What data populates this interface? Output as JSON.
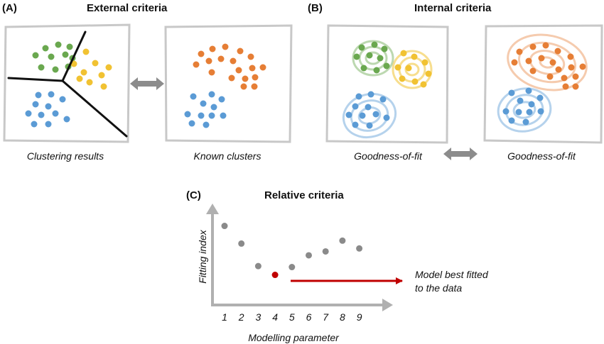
{
  "panels": {
    "a": {
      "letter": "(A)",
      "title": "External criteria",
      "left_caption": "Clustering results",
      "right_caption": "Known clusters"
    },
    "b": {
      "letter": "(B)",
      "title": "Internal criteria",
      "left_caption": "Goodness-of-fit",
      "right_caption": "Goodness-of-fit"
    },
    "c": {
      "letter": "(C)",
      "title": "Relative criteria",
      "note_line1": "Model best fitted",
      "note_line2": "to the data"
    }
  },
  "colors": {
    "green": "#6aa84f",
    "yellow": "#f1c232",
    "blue": "#5b9bd5",
    "orange": "#e67e35",
    "gray_point": "#8a8a8a",
    "best_point": "#c00000",
    "arrow_gray": "#8c8c8c",
    "axis_gray": "#b0b0b0"
  },
  "chart_data": {
    "type": "scatter",
    "title": "Relative criteria",
    "xlabel": "Modelling parameter",
    "ylabel": "Fitting index",
    "x": [
      1,
      2,
      3,
      4,
      5,
      6,
      7,
      8,
      9
    ],
    "y": [
      8.8,
      7.0,
      4.7,
      3.8,
      4.6,
      5.8,
      6.2,
      7.3,
      6.5
    ],
    "best_x": 4,
    "xlim": [
      0,
      10
    ],
    "ylim": [
      0,
      10
    ],
    "annotation": "Model best fitted to the data"
  }
}
